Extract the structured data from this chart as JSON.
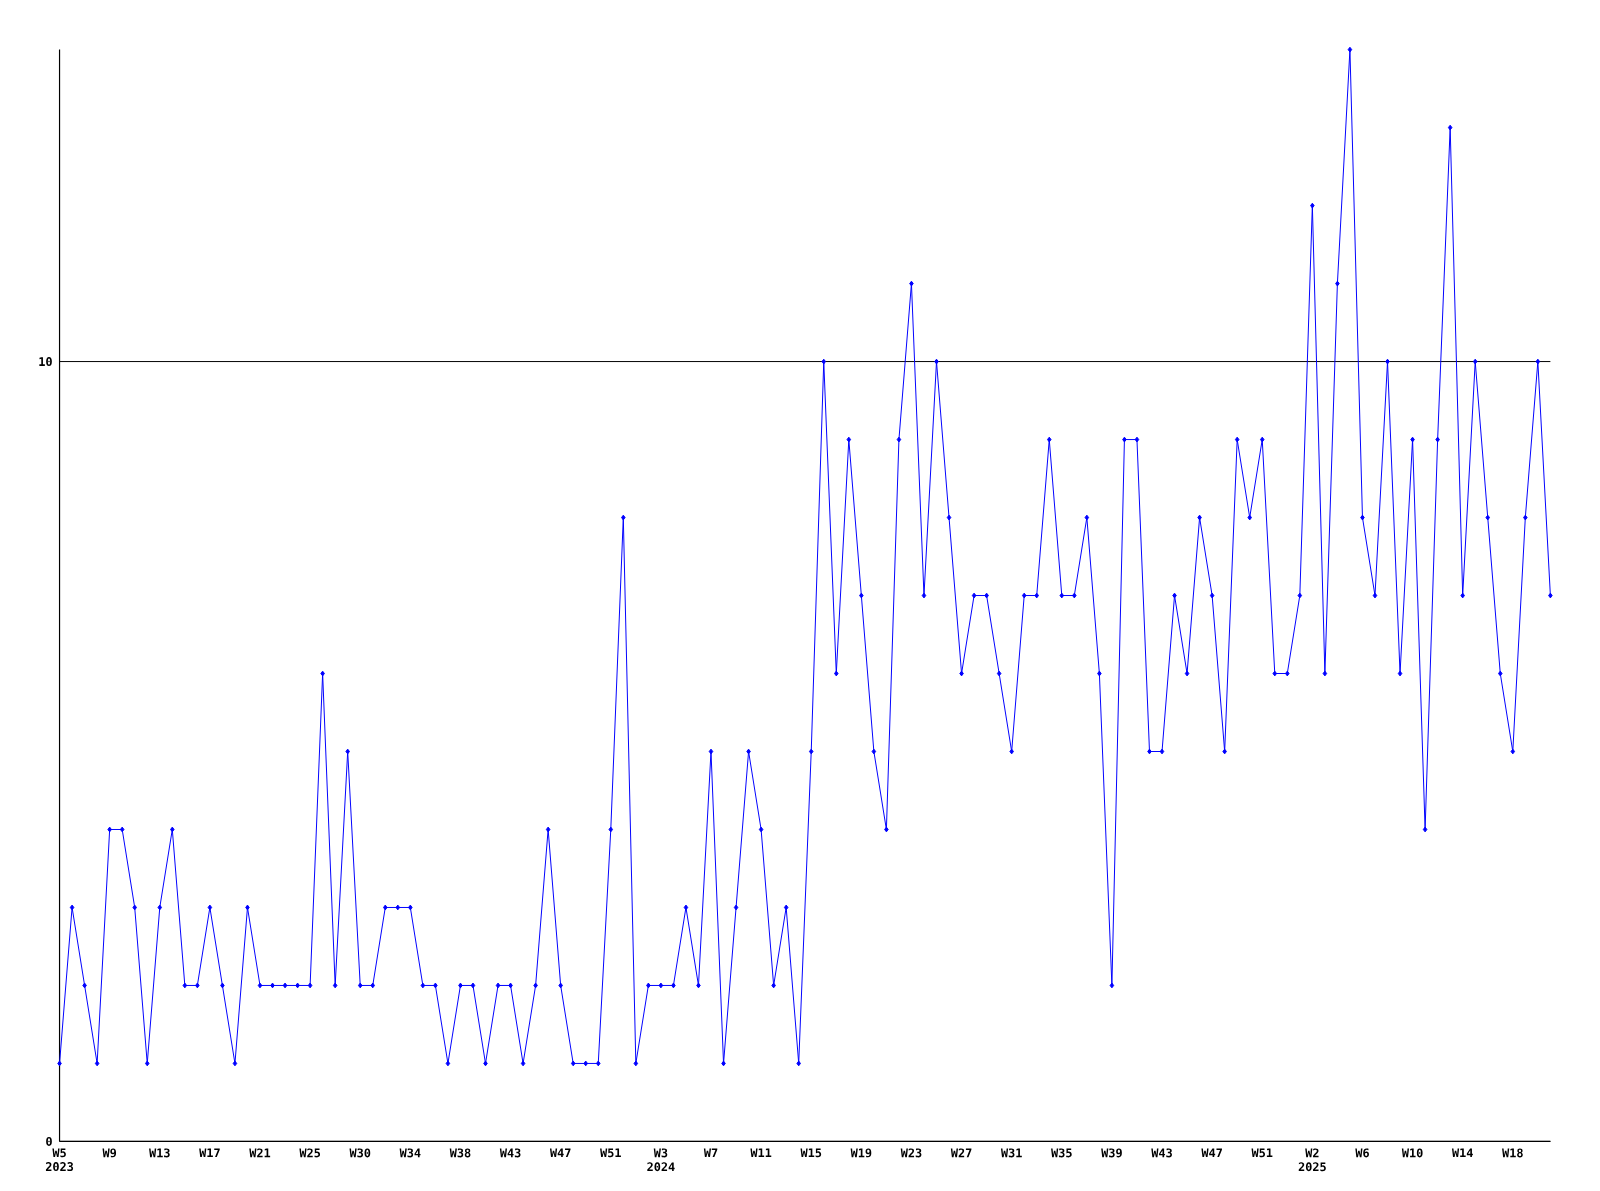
{
  "chart_data": {
    "type": "line",
    "categories": [
      "W5 2023",
      null,
      null,
      null,
      "W9",
      null,
      null,
      null,
      "W13",
      null,
      null,
      null,
      "W17",
      null,
      null,
      null,
      "W21",
      null,
      null,
      null,
      "W25",
      null,
      null,
      null,
      "W30",
      null,
      null,
      null,
      "W34",
      null,
      null,
      null,
      "W38",
      null,
      null,
      null,
      "W43",
      null,
      null,
      null,
      "W47",
      null,
      null,
      null,
      "W51",
      null,
      null,
      null,
      "W3 2024",
      null,
      null,
      null,
      "W7",
      null,
      null,
      null,
      "W11",
      null,
      null,
      null,
      "W15",
      null,
      null,
      null,
      "W19",
      null,
      null,
      null,
      "W23",
      null,
      null,
      null,
      "W27",
      null,
      null,
      null,
      "W31",
      null,
      null,
      null,
      "W35",
      null,
      null,
      null,
      "W39",
      null,
      null,
      null,
      "W43",
      null,
      null,
      null,
      "W47",
      null,
      null,
      null,
      "W51",
      null,
      null,
      null,
      "W2 2025",
      null,
      null,
      null,
      "W6",
      null,
      null,
      null,
      "W10",
      null,
      null,
      null,
      "W14",
      null,
      null,
      null,
      "W18",
      null,
      null,
      null
    ],
    "series": [
      {
        "color": "#0000ff",
        "values": [
          1,
          3,
          2,
          1,
          4,
          4,
          3,
          1,
          3,
          4,
          2,
          2,
          3,
          2,
          1,
          3,
          2,
          2,
          2,
          2,
          2,
          6,
          2,
          5,
          2,
          2,
          3,
          3,
          3,
          2,
          2,
          1,
          2,
          2,
          1,
          2,
          2,
          1,
          2,
          4,
          2,
          1,
          1,
          1,
          4,
          8,
          1,
          2,
          2,
          2,
          3,
          2,
          5,
          1,
          3,
          5,
          4,
          2,
          3,
          1,
          5,
          10,
          6,
          9,
          7,
          5,
          4,
          9,
          11,
          7,
          10,
          8,
          6,
          7,
          7,
          6,
          5,
          7,
          7,
          9,
          7,
          7,
          8,
          6,
          2,
          9,
          9,
          5,
          5,
          7,
          6,
          8,
          7,
          5,
          9,
          8,
          9,
          6,
          6,
          7,
          12,
          6,
          11,
          14,
          8,
          7,
          10,
          6,
          9,
          4,
          9,
          13,
          7,
          10,
          8,
          6,
          5,
          8,
          10,
          7
        ]
      }
    ],
    "ylim": [
      0,
      14
    ],
    "yticks": [
      0,
      10
    ],
    "grid": "y",
    "marker": "diamond",
    "line_style": "solid"
  }
}
